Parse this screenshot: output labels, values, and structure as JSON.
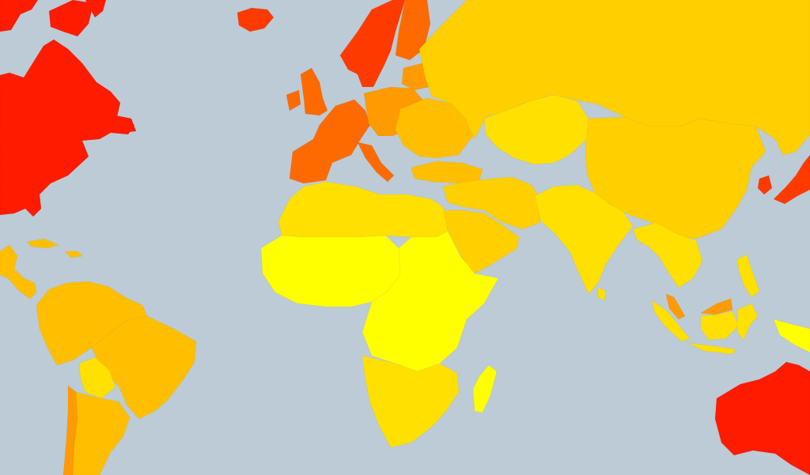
{
  "map": {
    "ocean_color": "#bccbd6",
    "legend_visible": false,
    "palette": {
      "red": "#ff1b00",
      "red_orange": "#ff3a00",
      "orange_dark": "#ff6a00",
      "orange": "#ff9a00",
      "amber": "#ffbf00",
      "gold": "#ffcf00",
      "yellow_gold": "#ffe000",
      "yellow": "#ffff00"
    },
    "regions": [
      {
        "name": "north-america",
        "color": "red"
      },
      {
        "name": "greenland",
        "color": "red"
      },
      {
        "name": "iceland",
        "color": "red_orange"
      },
      {
        "name": "central-america",
        "color": "amber"
      },
      {
        "name": "caribbean",
        "color": "amber"
      },
      {
        "name": "south-america-north",
        "color": "amber"
      },
      {
        "name": "brazil",
        "color": "amber"
      },
      {
        "name": "bolivia",
        "color": "yellow_gold"
      },
      {
        "name": "argentina",
        "color": "amber"
      },
      {
        "name": "chile",
        "color": "orange"
      },
      {
        "name": "uk-ireland",
        "color": "orange_dark"
      },
      {
        "name": "scandinavia",
        "color": "red_orange"
      },
      {
        "name": "finland",
        "color": "orange_dark"
      },
      {
        "name": "western-europe",
        "color": "orange_dark"
      },
      {
        "name": "central-europe",
        "color": "orange"
      },
      {
        "name": "eastern-europe",
        "color": "amber"
      },
      {
        "name": "turkey",
        "color": "amber"
      },
      {
        "name": "russia",
        "color": "gold"
      },
      {
        "name": "central-asia",
        "color": "yellow_gold"
      },
      {
        "name": "middle-east",
        "color": "gold"
      },
      {
        "name": "arabian-peninsula",
        "color": "gold"
      },
      {
        "name": "north-africa",
        "color": "yellow_gold"
      },
      {
        "name": "west-africa",
        "color": "yellow"
      },
      {
        "name": "east-africa",
        "color": "yellow"
      },
      {
        "name": "southern-africa",
        "color": "yellow_gold"
      },
      {
        "name": "madagascar",
        "color": "yellow"
      },
      {
        "name": "india-south-asia",
        "color": "yellow_gold"
      },
      {
        "name": "china",
        "color": "gold"
      },
      {
        "name": "southeast-asia",
        "color": "yellow_gold"
      },
      {
        "name": "indonesia",
        "color": "yellow_gold"
      },
      {
        "name": "malaysia",
        "color": "orange"
      },
      {
        "name": "korea",
        "color": "red_orange"
      },
      {
        "name": "japan",
        "color": "red_orange"
      },
      {
        "name": "papua",
        "color": "yellow"
      },
      {
        "name": "australia",
        "color": "red"
      }
    ]
  }
}
